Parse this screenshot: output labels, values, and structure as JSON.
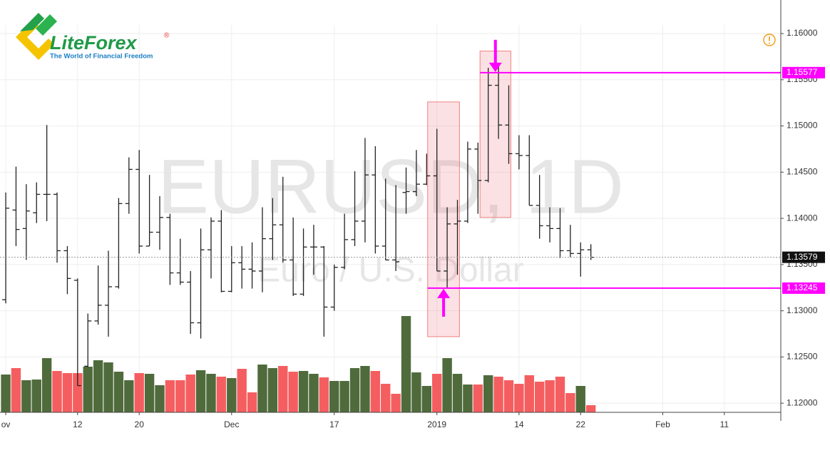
{
  "brand": {
    "name": "LiteForex",
    "mark": "®",
    "tagline": "The World of Financial Freedom"
  },
  "chart_data": {
    "type": "ohlc",
    "title": "EURUSD, 1D",
    "subtitle": "Euro / U.S. Dollar",
    "x": [
      0,
      1,
      2,
      3,
      4,
      5,
      6,
      7,
      8,
      9,
      10,
      11,
      12,
      13,
      14,
      15,
      16,
      17,
      18,
      19,
      20,
      21,
      22,
      23,
      24,
      25,
      26,
      27,
      28,
      29,
      30,
      31,
      32,
      33,
      34,
      35,
      36,
      37,
      38,
      39,
      40,
      41,
      42,
      43,
      44,
      45,
      46,
      47,
      48,
      49,
      50,
      51,
      52,
      53,
      54,
      55,
      56,
      57
    ],
    "open": [
      1.1312,
      1.1409,
      1.1389,
      1.1406,
      1.1426,
      1.1426,
      1.1365,
      1.1333,
      1.124,
      1.1289,
      1.1306,
      1.1326,
      1.1416,
      1.1453,
      1.137,
      1.1385,
      1.1401,
      1.1341,
      1.1331,
      1.1287,
      1.1366,
      1.1397,
      1.1321,
      1.1352,
      1.1345,
      1.1343,
      1.1378,
      1.1393,
      1.1355,
      1.1318,
      1.1369,
      1.1369,
      1.1304,
      1.1347,
      1.1377,
      1.1397,
      1.1447,
      1.137,
      1.1355,
      1.1428,
      1.1429,
      1.1437,
      1.1446,
      1.1343,
      1.1394,
      1.1397,
      1.1475,
      1.1441,
      1.1544,
      1.1501,
      1.147,
      1.1468,
      1.1414,
      1.1392,
      1.1389,
      1.1365,
      1.1362,
      1.1366
    ],
    "high": [
      1.1428,
      1.1456,
      1.1437,
      1.1439,
      1.1501,
      1.1428,
      1.137,
      1.1335,
      1.1297,
      1.1349,
      1.1365,
      1.1422,
      1.1466,
      1.1474,
      1.1447,
      1.1424,
      1.1405,
      1.1378,
      1.1343,
      1.1389,
      1.1401,
      1.1409,
      1.137,
      1.137,
      1.1374,
      1.1412,
      1.1422,
      1.1445,
      1.1401,
      1.1389,
      1.1393,
      1.137,
      1.135,
      1.1405,
      1.1451,
      1.1487,
      1.1478,
      1.1443,
      1.1436,
      1.1455,
      1.1474,
      1.147,
      1.1497,
      1.1412,
      1.142,
      1.1483,
      1.1482,
      1.1563,
      1.1568,
      1.1544,
      1.149,
      1.149,
      1.1447,
      1.1412,
      1.1411,
      1.1393,
      1.1374,
      1.1372
    ],
    "low": [
      1.1308,
      1.137,
      1.1355,
      1.1395,
      1.1397,
      1.1352,
      1.1318,
      1.1219,
      1.1239,
      1.1285,
      1.1272,
      1.1324,
      1.1405,
      1.1362,
      1.137,
      1.1366,
      1.1328,
      1.1328,
      1.1275,
      1.127,
      1.1335,
      1.132,
      1.132,
      1.1324,
      1.1324,
      1.132,
      1.1355,
      1.1352,
      1.1316,
      1.1316,
      1.1339,
      1.1272,
      1.13,
      1.1345,
      1.137,
      1.1374,
      1.1362,
      1.1355,
      1.1343,
      1.1405,
      1.1424,
      1.1436,
      1.1343,
      1.1324,
      1.1339,
      1.1395,
      1.1405,
      1.1439,
      1.1486,
      1.1459,
      1.1453,
      1.1414,
      1.1378,
      1.1374,
      1.1357,
      1.1358,
      1.1337,
      1.1355
    ],
    "close": [
      1.1411,
      1.1388,
      1.1408,
      1.1426,
      1.1426,
      1.1365,
      1.1335,
      1.1219,
      1.1289,
      1.1306,
      1.1326,
      1.1416,
      1.1453,
      1.137,
      1.1385,
      1.1401,
      1.1341,
      1.1331,
      1.1287,
      1.1366,
      1.1397,
      1.1321,
      1.1352,
      1.1345,
      1.1343,
      1.1378,
      1.1393,
      1.1355,
      1.1318,
      1.1369,
      1.1369,
      1.1304,
      1.1347,
      1.1377,
      1.1397,
      1.1447,
      1.137,
      1.1355,
      1.1353,
      1.1429,
      1.1437,
      1.1446,
      1.1343,
      1.1394,
      1.1397,
      1.1475,
      1.1441,
      1.1544,
      1.1501,
      1.147,
      1.1468,
      1.1414,
      1.1392,
      1.1389,
      1.1365,
      1.1362,
      1.1366,
      1.13579
    ],
    "volume": [
      53,
      62,
      45,
      46,
      76,
      58,
      55,
      55,
      64,
      73,
      70,
      57,
      45,
      55,
      54,
      38,
      45,
      45,
      53,
      59,
      54,
      50,
      48,
      61,
      28,
      67,
      62,
      65,
      57,
      58,
      54,
      49,
      44,
      44,
      62,
      65,
      58,
      40,
      26,
      135,
      56,
      37,
      54,
      76,
      54,
      39,
      39,
      52,
      50,
      45,
      40,
      52,
      43,
      45,
      50,
      27,
      37,
      10
    ],
    "vlim": [
      0,
      140
    ],
    "bar_color": "#222222",
    "up_color": "#4f6b3c",
    "down_color": "#f55e60",
    "level_color": "#ff00ff",
    "xlim": [
      -0.56,
      75.5
    ],
    "xticks": [
      {
        "value": 0,
        "label": "ov"
      },
      {
        "value": 7,
        "label": "12"
      },
      {
        "value": 13,
        "label": "20"
      },
      {
        "value": 22,
        "label": "Dec"
      },
      {
        "value": 32,
        "label": "17"
      },
      {
        "value": 42,
        "label": "2019"
      },
      {
        "value": 50,
        "label": "14"
      },
      {
        "value": 56,
        "label": "22"
      },
      {
        "value": 64,
        "label": "Feb"
      },
      {
        "value": 70,
        "label": "11"
      }
    ],
    "ylim": [
      1.11901,
      1.16363
    ],
    "yticks": [
      {
        "value": 1.12,
        "label": "1.12000"
      },
      {
        "value": 1.125,
        "label": "1.12500"
      },
      {
        "value": 1.13,
        "label": "1.13000"
      },
      {
        "value": 1.135,
        "label": "1.13500"
      },
      {
        "value": 1.14,
        "label": "1.14000"
      },
      {
        "value": 1.145,
        "label": "1.14500"
      },
      {
        "value": 1.15,
        "label": "1.15000"
      },
      {
        "value": 1.155,
        "label": "1.15500"
      },
      {
        "value": 1.16,
        "label": "1.16000"
      }
    ],
    "grid": true,
    "zones": [
      {
        "x": [
          41.1,
          44.2
        ],
        "y": [
          1.1272,
          1.1526
        ]
      },
      {
        "x": [
          46.2,
          49.2
        ],
        "y": [
          1.1401,
          1.1581
        ]
      }
    ],
    "levels": [
      {
        "value": 1.15577,
        "from": 46.2
      },
      {
        "value": 1.13245,
        "from": 41.1
      }
    ]
  }
}
